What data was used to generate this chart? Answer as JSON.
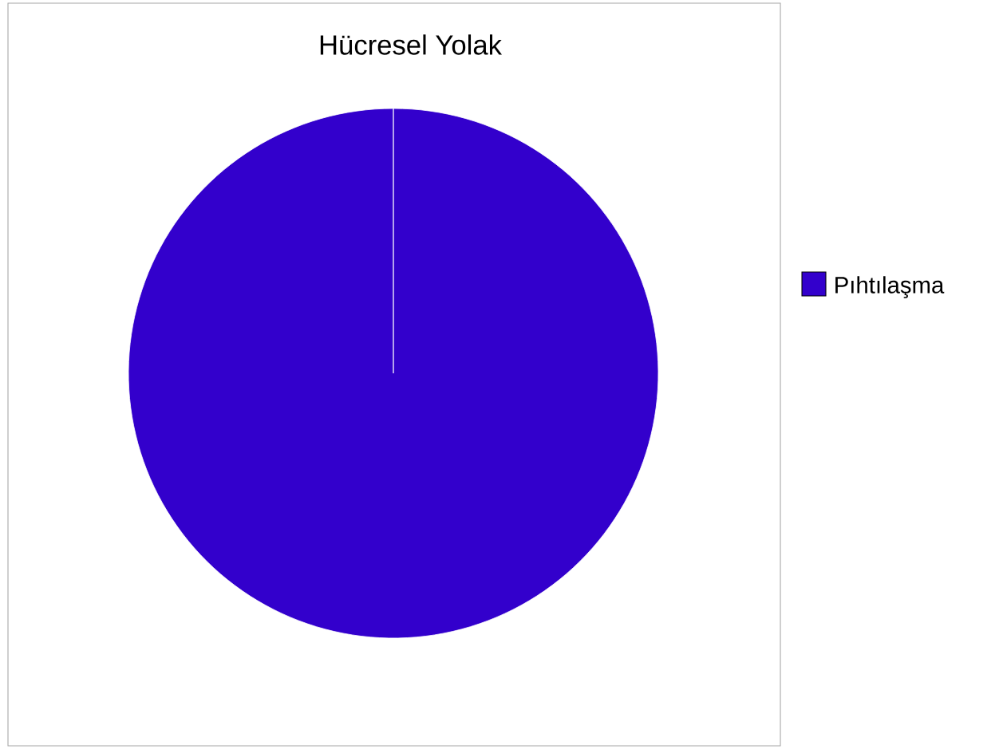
{
  "chart_data": {
    "type": "pie",
    "title": "Hücresel Yolak",
    "categories": [
      "Pıhtılaşma"
    ],
    "values": [
      100
    ],
    "colors": [
      "#3300cc"
    ],
    "legend": "right"
  }
}
